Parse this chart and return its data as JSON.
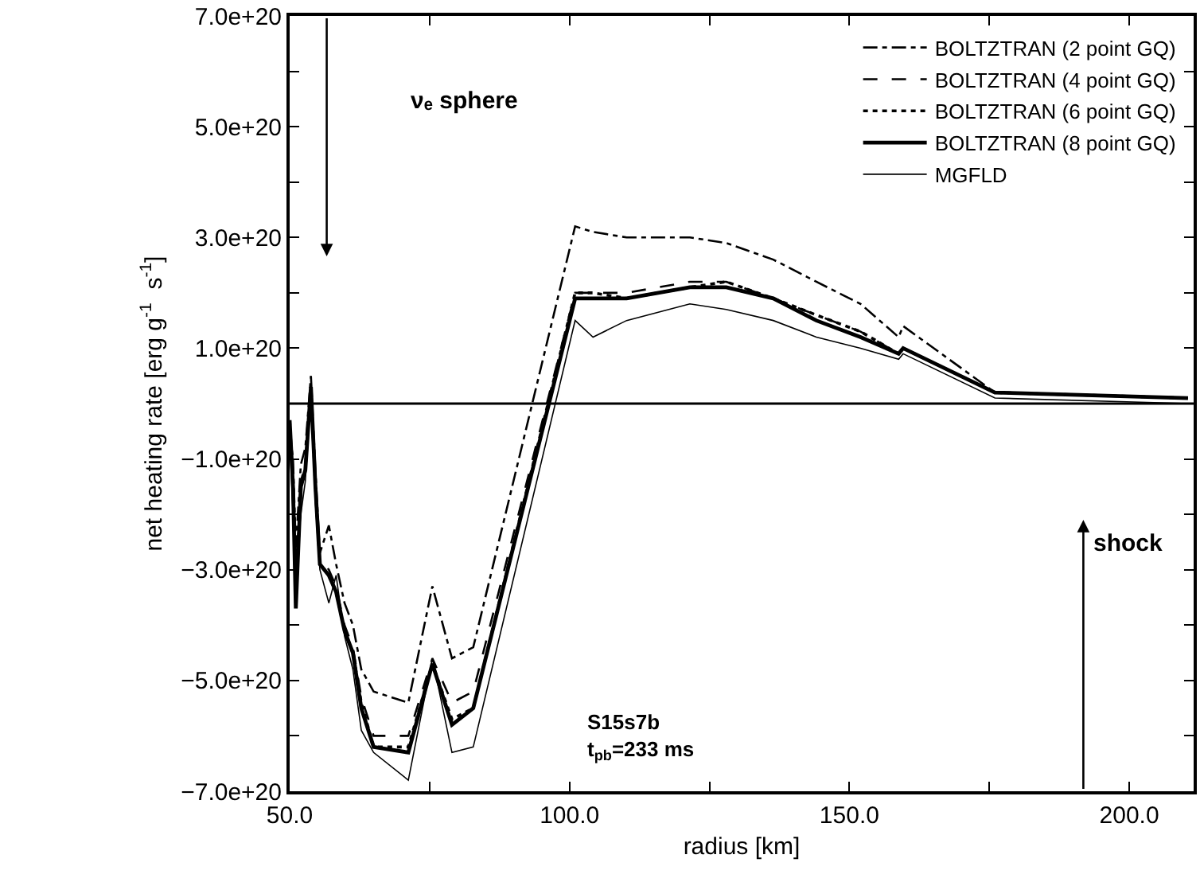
{
  "chart_data": {
    "type": "line",
    "xlabel": "radius [km]",
    "ylabel": "net heating rate [erg g$^{-1}$  s$^{-1}$]",
    "x": [
      50,
      50.6,
      51.1,
      52,
      52.8,
      53.8,
      54.6,
      55.4,
      57,
      58.3,
      59.8,
      61.3,
      62.8,
      65,
      71.2,
      75.5,
      79,
      82.8,
      101,
      104.2,
      110.2,
      121.5,
      128,
      136.4,
      144.1,
      152,
      158.8,
      159.6,
      176,
      210.5
    ],
    "series": [
      {
        "name": "BOLTZTRAN (2 point GQ)",
        "color": "#000000",
        "line_style": "dashdot",
        "values": [
          -5e+19,
          -1e+20,
          -2.6e+20,
          -1.1e+20,
          -8e+19,
          5e+19,
          -1.2e+20,
          -2.7e+20,
          -2.2e+20,
          -2.9e+20,
          -3.6e+20,
          -4e+20,
          -4.8e+20,
          -5.2e+20,
          -5.4e+20,
          -3.3e+20,
          -4.6e+20,
          -4.4e+20,
          3.2e+20,
          3.1e+20,
          3e+20,
          3e+20,
          2.9e+20,
          2.6e+20,
          2.2e+20,
          1.8e+20,
          1.2e+20,
          1.4e+20,
          2e+19,
          1e+19
        ]
      },
      {
        "name": "BOLTZTRAN (4 point GQ)",
        "color": "#000000",
        "line_style": "dashed",
        "values": [
          -3e+19,
          -1.3e+20,
          -3.5e+20,
          -1.4e+20,
          -1.1e+20,
          3e+19,
          -1.4e+20,
          -2.8e+20,
          -3e+20,
          -3.3e+20,
          -4e+20,
          -4.4e+20,
          -5.3e+20,
          -6e+20,
          -6e+20,
          -4.6e+20,
          -5.4e+20,
          -5.2e+20,
          2e+20,
          2e+20,
          2e+20,
          2.2e+20,
          2.2e+20,
          1.9e+20,
          1.6e+20,
          1.3e+20,
          9e+19,
          1e+20,
          2e+19,
          1e+19
        ]
      },
      {
        "name": "BOLTZTRAN (6 point GQ)",
        "color": "#000000",
        "line_style": "dotted",
        "values": [
          -3e+19,
          -1.4e+20,
          -3.6e+20,
          -1.5e+20,
          -1.2e+20,
          3e+19,
          -1.5e+20,
          -2.9e+20,
          -3.1e+20,
          -3.4e+20,
          -4.1e+20,
          -4.5e+20,
          -5.4e+20,
          -6.2e+20,
          -6.2e+20,
          -4.7e+20,
          -5.7e+20,
          -5.5e+20,
          2e+20,
          2e+20,
          1.9e+20,
          2.1e+20,
          2.2e+20,
          1.9e+20,
          1.6e+20,
          1.3e+20,
          9e+19,
          1e+20,
          2e+19,
          1e+19
        ]
      },
      {
        "name": "BOLTZTRAN (8 point GQ)",
        "color": "#000000",
        "line_style": "solid",
        "values": [
          -3e+19,
          -1.5e+20,
          -3.7e+20,
          -1.5e+20,
          -1.2e+20,
          3e+19,
          -1.5e+20,
          -2.9e+20,
          -3.1e+20,
          -3.4e+20,
          -4.1e+20,
          -4.5e+20,
          -5.5e+20,
          -6.2e+20,
          -6.3e+20,
          -4.7e+20,
          -5.8e+20,
          -5.5e+20,
          1.9e+20,
          1.9e+20,
          1.9e+20,
          2.1e+20,
          2.1e+20,
          1.9e+20,
          1.5e+20,
          1.2e+20,
          9e+19,
          1e+20,
          2e+19,
          1e+19
        ]
      },
      {
        "name": "MGFLD",
        "color": "#000000",
        "line_style": "solid",
        "values": [
          -6e+19,
          -2e+20,
          -3e+20,
          -2e+20,
          -1.4e+20,
          2e+19,
          -1.8e+20,
          -3e+20,
          -3.6e+20,
          -3.1e+20,
          -4.2e+20,
          -4.8e+20,
          -5.9e+20,
          -6.3e+20,
          -6.8e+20,
          -4.6e+20,
          -6.3e+20,
          -6.2e+20,
          1.5e+20,
          1.2e+20,
          1.5e+20,
          1.8e+20,
          1.7e+20,
          1.5e+20,
          1.2e+20,
          1e+20,
          8e+19,
          9e+19,
          1e+19,
          0.0
        ]
      }
    ],
    "xlim": [
      50,
      211.5
    ],
    "xticks": [
      {
        "value": 50,
        "label": "50.0"
      },
      {
        "value": 75,
        "label": null
      },
      {
        "value": 100,
        "label": "100.0"
      },
      {
        "value": 125,
        "label": null
      },
      {
        "value": 150,
        "label": "150.0"
      },
      {
        "value": 175,
        "label": null
      },
      {
        "value": 200,
        "label": "200.0"
      }
    ],
    "ylim": [
      -7e+20,
      7e+20
    ],
    "yticks": [
      {
        "value": -7e+20,
        "label": "−7.0e+20"
      },
      {
        "value": -6e+20,
        "label": null
      },
      {
        "value": -5e+20,
        "label": "−5.0e+20"
      },
      {
        "value": -4e+20,
        "label": null
      },
      {
        "value": -3e+20,
        "label": "−3.0e+20"
      },
      {
        "value": -2e+20,
        "label": null
      },
      {
        "value": -1e+20,
        "label": "−1.0e+20"
      },
      {
        "value": 0,
        "label": null
      },
      {
        "value": 1e+20,
        "label": "1.0e+20"
      },
      {
        "value": 2e+20,
        "label": null
      },
      {
        "value": 3e+20,
        "label": "3.0e+20"
      },
      {
        "value": 4e+20,
        "label": null
      },
      {
        "value": 5e+20,
        "label": "5.0e+20"
      },
      {
        "value": 6e+20,
        "label": null
      },
      {
        "value": 7e+20,
        "label": "7.0e+20"
      }
    ],
    "ref_lines": [
      {
        "axis": "y",
        "value": 0,
        "color": "#000000",
        "line_style": "solid"
      }
    ],
    "annotations": [
      "νₑ sphere",
      "shock",
      "S15s7b\nt$_{pb}$=233 ms"
    ],
    "legend": "top right",
    "marker": "none"
  }
}
